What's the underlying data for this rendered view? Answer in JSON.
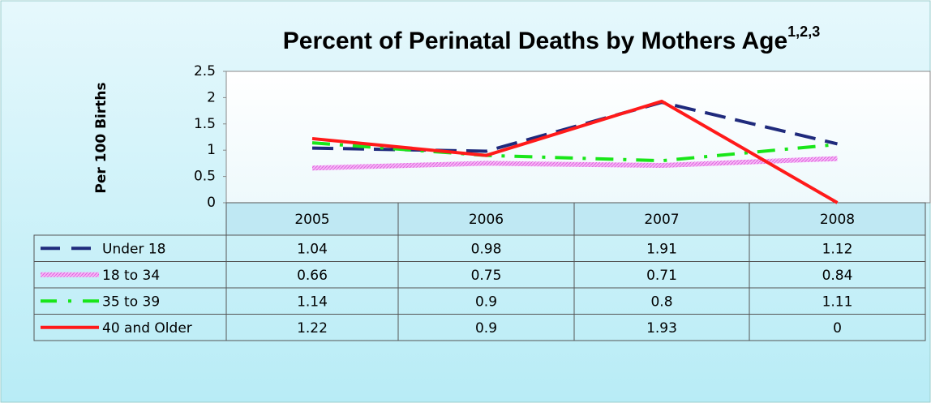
{
  "chart_data": {
    "type": "line",
    "title": "Percent of Perinatal Deaths by Mothers Age",
    "title_superscript": "1,2,3",
    "y_label": "Per 100 Births",
    "categories": [
      "2005",
      "2006",
      "2007",
      "2008"
    ],
    "series": [
      {
        "name": "Under 18",
        "color": "#1f2a7c",
        "style": "long-dash",
        "values": [
          1.04,
          0.98,
          1.91,
          1.12
        ]
      },
      {
        "name": "18 to 34",
        "color": "#f08cf0",
        "style": "hatched",
        "values": [
          0.66,
          0.75,
          0.71,
          0.84
        ]
      },
      {
        "name": "35 to 39",
        "color": "#19e619",
        "style": "dash-dot",
        "values": [
          1.14,
          0.9,
          0.8,
          1.11
        ]
      },
      {
        "name": "40 and Older",
        "color": "#ff1a1a",
        "style": "solid",
        "values": [
          1.22,
          0.9,
          1.93,
          0
        ]
      }
    ],
    "ylim": [
      0,
      2.5
    ],
    "yticks": [
      0,
      0.5,
      1,
      1.5,
      2,
      2.5
    ],
    "data_table": true,
    "grid": false
  }
}
